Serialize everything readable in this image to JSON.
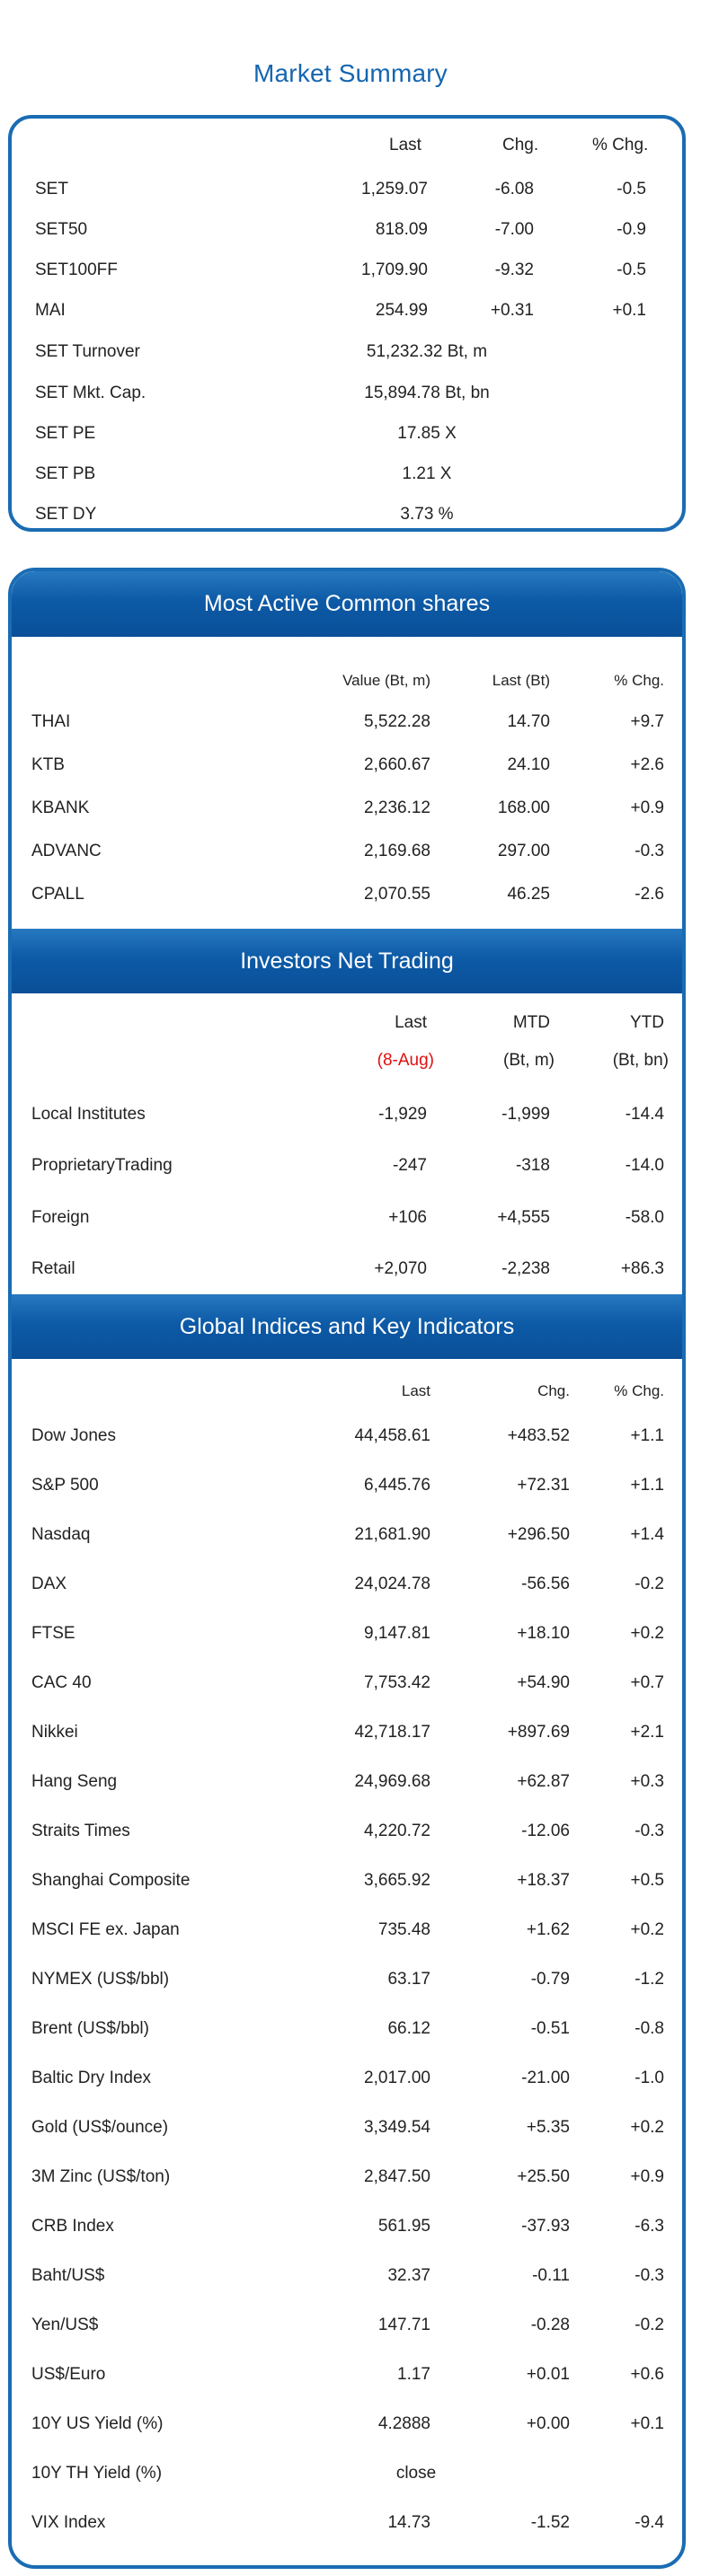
{
  "title": "Market Summary",
  "market_summary": {
    "headers": {
      "last": "Last",
      "chg": "Chg.",
      "pct": "% Chg."
    },
    "rows": [
      {
        "name": "SET",
        "last": "1,259.07",
        "chg": "-6.08",
        "pct": "-0.5"
      },
      {
        "name": "SET50",
        "last": "818.09",
        "chg": "-7.00",
        "pct": "-0.9"
      },
      {
        "name": "SET100FF",
        "last": "1,709.90",
        "chg": "-9.32",
        "pct": "-0.5"
      },
      {
        "name": "MAI",
        "last": "254.99",
        "chg": "+0.31",
        "pct": "+0.1"
      }
    ],
    "single_rows": [
      {
        "name": "SET  Turnover",
        "value": "51,232.32 Bt, m"
      },
      {
        "name": "SET  Mkt. Cap.",
        "value": "15,894.78 Bt, bn"
      },
      {
        "name": "SET  PE",
        "value": "17.85 X"
      },
      {
        "name": "SET  PB",
        "value": "1.21 X"
      },
      {
        "name": "SET  DY",
        "value": "3.73 %"
      }
    ]
  },
  "most_active": {
    "title": "Most Active Common shares",
    "headers": {
      "value": "Value (Bt, m)",
      "last": "Last (Bt)",
      "pct": "% Chg."
    },
    "rows": [
      {
        "name": "THAI",
        "value": "5,522.28",
        "last": "14.70",
        "pct": "+9.7"
      },
      {
        "name": "KTB",
        "value": "2,660.67",
        "last": "24.10",
        "pct": "+2.6"
      },
      {
        "name": "KBANK",
        "value": "2,236.12",
        "last": "168.00",
        "pct": "+0.9"
      },
      {
        "name": "ADVANC",
        "value": "2,169.68",
        "last": "297.00",
        "pct": "-0.3"
      },
      {
        "name": "CPALL",
        "value": "2,070.55",
        "last": "46.25",
        "pct": "-2.6"
      }
    ]
  },
  "investors": {
    "title": "Investors Net Trading",
    "headers": {
      "last": "Last",
      "date": "(8-Aug)",
      "mtd": "MTD",
      "mtd_unit": "(Bt, m)",
      "ytd": "YTD",
      "ytd_unit": "(Bt, bn)"
    },
    "rows": [
      {
        "name": "Local Institutes",
        "last": "-1,929",
        "mtd": "-1,999",
        "ytd": "-14.4"
      },
      {
        "name": "ProprietaryTrading",
        "last": "-247",
        "mtd": "-318",
        "ytd": "-14.0"
      },
      {
        "name": "Foreign",
        "last": "+106",
        "mtd": "+4,555",
        "ytd": "-58.0"
      },
      {
        "name": "Retail",
        "last": "+2,070",
        "mtd": "-2,238",
        "ytd": "+86.3"
      }
    ]
  },
  "global": {
    "title": "Global Indices and Key Indicators",
    "headers": {
      "last": "Last",
      "chg": "Chg.",
      "pct": "% Chg."
    },
    "rows": [
      {
        "name": "Dow Jones",
        "last": "44,458.61",
        "chg": "+483.52",
        "pct": "+1.1"
      },
      {
        "name": "S&P 500",
        "last": "6,445.76",
        "chg": "+72.31",
        "pct": "+1.1"
      },
      {
        "name": "Nasdaq",
        "last": "21,681.90",
        "chg": "+296.50",
        "pct": "+1.4"
      },
      {
        "name": "DAX",
        "last": "24,024.78",
        "chg": "-56.56",
        "pct": "-0.2"
      },
      {
        "name": "FTSE",
        "last": "9,147.81",
        "chg": "+18.10",
        "pct": "+0.2"
      },
      {
        "name": "CAC 40",
        "last": "7,753.42",
        "chg": "+54.90",
        "pct": "+0.7"
      },
      {
        "name": "Nikkei",
        "last": "42,718.17",
        "chg": "+897.69",
        "pct": "+2.1"
      },
      {
        "name": "Hang Seng",
        "last": "24,969.68",
        "chg": "+62.87",
        "pct": "+0.3"
      },
      {
        "name": "Straits Times",
        "last": "4,220.72",
        "chg": "-12.06",
        "pct": "-0.3"
      },
      {
        "name": "Shanghai Composite",
        "last": "3,665.92",
        "chg": "+18.37",
        "pct": "+0.5"
      },
      {
        "name": "MSCI FE ex. Japan",
        "last": "735.48",
        "chg": "+1.62",
        "pct": "+0.2"
      },
      {
        "name": "NYMEX (US$/bbl)",
        "last": "63.17",
        "chg": "-0.79",
        "pct": "-1.2"
      },
      {
        "name": "Brent (US$/bbl)",
        "last": "66.12",
        "chg": "-0.51",
        "pct": "-0.8"
      },
      {
        "name": "Baltic Dry Index",
        "last": "2,017.00",
        "chg": "-21.00",
        "pct": "-1.0"
      },
      {
        "name": "Gold (US$/ounce)",
        "last": "3,349.54",
        "chg": "+5.35",
        "pct": "+0.2"
      },
      {
        "name": "3M Zinc (US$/ton)",
        "last": "2,847.50",
        "chg": "+25.50",
        "pct": "+0.9"
      },
      {
        "name": "CRB Index",
        "last": "561.95",
        "chg": "-37.93",
        "pct": "-6.3"
      },
      {
        "name": "Baht/US$",
        "last": "32.37",
        "chg": "-0.11",
        "pct": "-0.3"
      },
      {
        "name": "Yen/US$",
        "last": "147.71",
        "chg": "-0.28",
        "pct": "-0.2"
      },
      {
        "name": "US$/Euro",
        "last": "1.17",
        "chg": "+0.01",
        "pct": "+0.6"
      },
      {
        "name": "10Y US Yield (%)",
        "last": "4.2888",
        "chg": "+0.00",
        "pct": "+0.1"
      }
    ],
    "close_row": {
      "name": "10Y TH Yield (%)",
      "value": "close"
    },
    "last_row": {
      "name": "VIX Index",
      "last": "14.73",
      "chg": "-1.52",
      "pct": "-9.4"
    }
  }
}
